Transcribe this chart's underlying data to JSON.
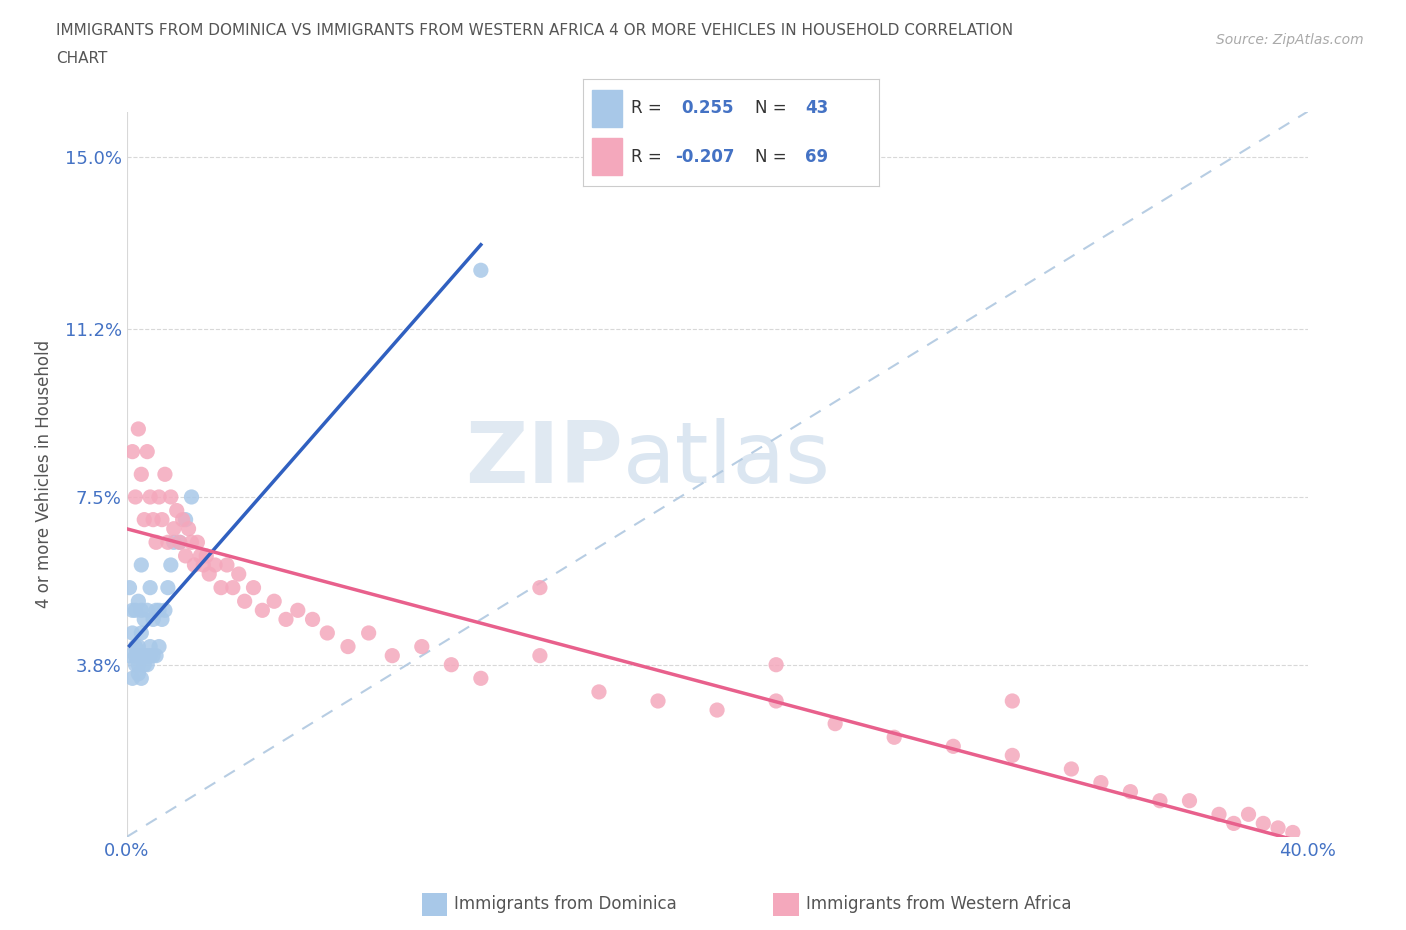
{
  "title_line1": "IMMIGRANTS FROM DOMINICA VS IMMIGRANTS FROM WESTERN AFRICA 4 OR MORE VEHICLES IN HOUSEHOLD CORRELATION",
  "title_line2": "CHART",
  "source_text": "Source: ZipAtlas.com",
  "ylabel": "4 or more Vehicles in Household",
  "xmin": 0.0,
  "xmax": 0.4,
  "ymin": 0.0,
  "ymax": 0.16,
  "yticks": [
    0.038,
    0.075,
    0.112,
    0.15
  ],
  "ytick_labels": [
    "3.8%",
    "7.5%",
    "11.2%",
    "15.0%"
  ],
  "xticks": [
    0.0,
    0.4
  ],
  "xtick_labels": [
    "0.0%",
    "40.0%"
  ],
  "dominica_color": "#a8c8e8",
  "western_africa_color": "#f4a8bc",
  "dominica_line_color": "#3060c0",
  "western_africa_line_color": "#e8608c",
  "dashed_line_color": "#b0c8e0",
  "R_dominica": "0.255",
  "N_dominica": "43",
  "R_western_africa": "-0.207",
  "N_western_africa": "69",
  "legend_label_dominica": "Immigrants from Dominica",
  "legend_label_western_africa": "Immigrants from Western Africa",
  "watermark_zip": "ZIP",
  "watermark_atlas": "atlas",
  "dominica_x": [
    0.001,
    0.001,
    0.002,
    0.002,
    0.002,
    0.003,
    0.003,
    0.003,
    0.003,
    0.004,
    0.004,
    0.004,
    0.004,
    0.004,
    0.005,
    0.005,
    0.005,
    0.005,
    0.005,
    0.006,
    0.006,
    0.006,
    0.007,
    0.007,
    0.007,
    0.008,
    0.008,
    0.008,
    0.009,
    0.009,
    0.01,
    0.01,
    0.011,
    0.011,
    0.012,
    0.013,
    0.014,
    0.015,
    0.016,
    0.018,
    0.02,
    0.022,
    0.12
  ],
  "dominica_y": [
    0.04,
    0.055,
    0.035,
    0.045,
    0.05,
    0.038,
    0.04,
    0.042,
    0.05,
    0.036,
    0.038,
    0.04,
    0.042,
    0.052,
    0.035,
    0.04,
    0.045,
    0.05,
    0.06,
    0.038,
    0.04,
    0.048,
    0.038,
    0.04,
    0.05,
    0.04,
    0.042,
    0.055,
    0.04,
    0.048,
    0.04,
    0.05,
    0.042,
    0.05,
    0.048,
    0.05,
    0.055,
    0.06,
    0.065,
    0.065,
    0.07,
    0.075,
    0.125
  ],
  "western_africa_x": [
    0.002,
    0.003,
    0.004,
    0.005,
    0.006,
    0.007,
    0.008,
    0.009,
    0.01,
    0.011,
    0.012,
    0.013,
    0.014,
    0.015,
    0.016,
    0.017,
    0.018,
    0.019,
    0.02,
    0.021,
    0.022,
    0.023,
    0.024,
    0.025,
    0.026,
    0.027,
    0.028,
    0.03,
    0.032,
    0.034,
    0.036,
    0.038,
    0.04,
    0.043,
    0.046,
    0.05,
    0.054,
    0.058,
    0.063,
    0.068,
    0.075,
    0.082,
    0.09,
    0.1,
    0.11,
    0.12,
    0.14,
    0.16,
    0.18,
    0.2,
    0.22,
    0.24,
    0.26,
    0.28,
    0.3,
    0.32,
    0.33,
    0.34,
    0.35,
    0.36,
    0.37,
    0.375,
    0.38,
    0.385,
    0.39,
    0.395,
    0.14,
    0.22,
    0.3
  ],
  "western_africa_y": [
    0.085,
    0.075,
    0.09,
    0.08,
    0.07,
    0.085,
    0.075,
    0.07,
    0.065,
    0.075,
    0.07,
    0.08,
    0.065,
    0.075,
    0.068,
    0.072,
    0.065,
    0.07,
    0.062,
    0.068,
    0.065,
    0.06,
    0.065,
    0.062,
    0.06,
    0.062,
    0.058,
    0.06,
    0.055,
    0.06,
    0.055,
    0.058,
    0.052,
    0.055,
    0.05,
    0.052,
    0.048,
    0.05,
    0.048,
    0.045,
    0.042,
    0.045,
    0.04,
    0.042,
    0.038,
    0.035,
    0.04,
    0.032,
    0.03,
    0.028,
    0.03,
    0.025,
    0.022,
    0.02,
    0.018,
    0.015,
    0.012,
    0.01,
    0.008,
    0.008,
    0.005,
    0.003,
    0.005,
    0.003,
    0.002,
    0.001,
    0.055,
    0.038,
    0.03
  ]
}
